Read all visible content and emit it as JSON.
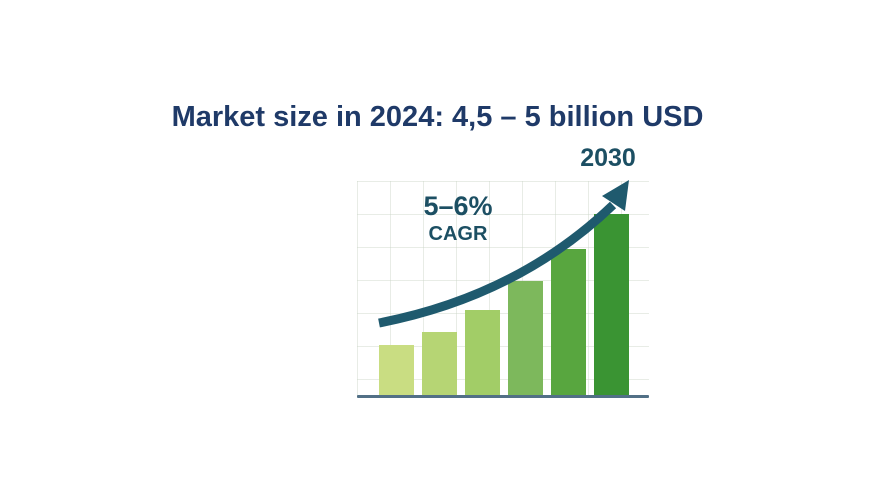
{
  "slide": {
    "title": "Market size in 2024: 4,5 – 5 billion USD"
  },
  "colors": {
    "title": "#1f3a68",
    "annotation": "#1c4f63",
    "arrow": "#1f5a6e",
    "baseline": "#527086",
    "background": "#ffffff"
  },
  "chart": {
    "cagr_value": "5–6%",
    "cagr_label": "CAGR",
    "end_year_label": "2030"
  },
  "chart_data": {
    "type": "bar",
    "title": "Market size in 2024: 4,5 – 5 billion USD",
    "categories": [
      "",
      "",
      "",
      "",
      "",
      ""
    ],
    "values": [
      28,
      35,
      47,
      63,
      81,
      100
    ],
    "values_unit": "relative bar height, % of tallest bar (no numeric axis shown)",
    "bar_colors": [
      "#c9dd82",
      "#b6d574",
      "#a2cd67",
      "#7db85c",
      "#58a63f",
      "#3a9433"
    ],
    "annotations": [
      "5–6% CAGR",
      "2030"
    ],
    "trend_arrow": "curved dark-teal arrow rising left-to-right, tip under the 2030 label",
    "xlabel": "",
    "ylabel": "",
    "ylim": [
      0,
      100
    ],
    "grid": "faint light square grid behind bars",
    "legend": "none",
    "axes": "single horizontal baseline only, no ticks or tick labels"
  }
}
